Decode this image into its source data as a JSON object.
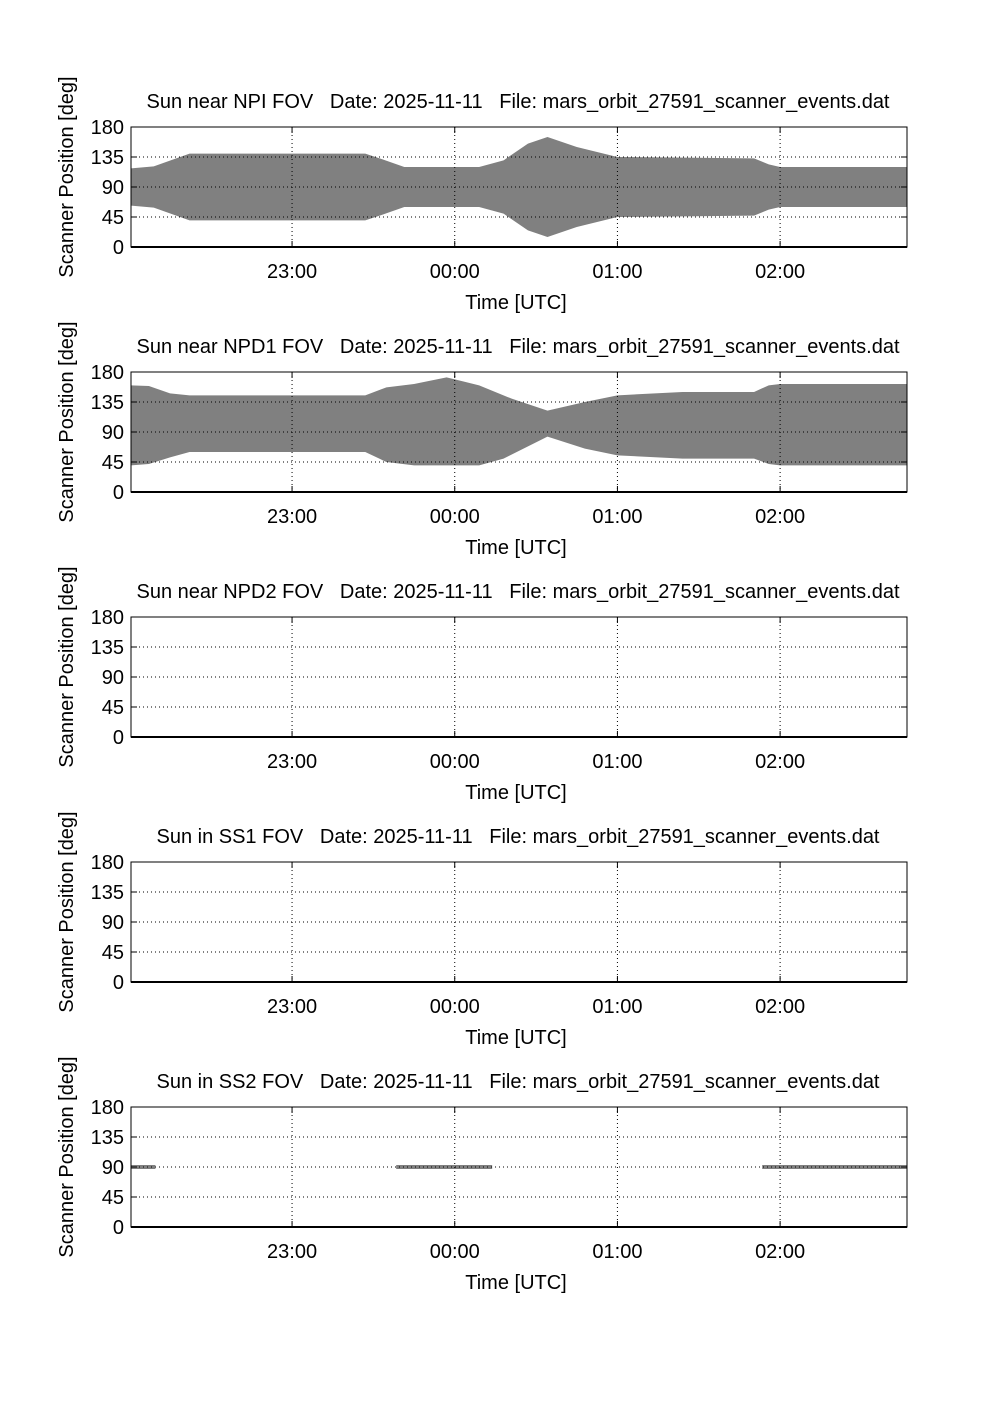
{
  "chart_data": [
    {
      "type": "area",
      "title": "Sun near NPI FOV   Date: 2025-11-11   File: mars_orbit_27591_scanner_events.dat",
      "xlabel": "Time [UTC]",
      "ylabel": "Scanner Position [deg]",
      "xlim_hours_from_midnight": [
        -1.99,
        2.78
      ],
      "ylim": [
        0,
        180
      ],
      "yticks": [
        "0",
        "45",
        "90",
        "135",
        "180"
      ],
      "xticks": [
        {
          "t": -1,
          "label": "23:00"
        },
        {
          "t": 0,
          "label": "00:00"
        },
        {
          "t": 1,
          "label": "01:00"
        },
        {
          "t": 2,
          "label": "02:00"
        }
      ],
      "grid": true,
      "color": "#808080",
      "upper": [
        [
          -1.99,
          118
        ],
        [
          -1.85,
          121
        ],
        [
          -1.63,
          140
        ],
        [
          -0.55,
          140
        ],
        [
          -0.45,
          132
        ],
        [
          -0.31,
          120
        ],
        [
          0.15,
          120
        ],
        [
          0.3,
          130
        ],
        [
          0.45,
          155
        ],
        [
          0.57,
          165
        ],
        [
          0.75,
          150
        ],
        [
          1.0,
          135
        ],
        [
          1.84,
          133
        ],
        [
          1.93,
          124
        ],
        [
          2.0,
          120
        ],
        [
          2.78,
          120
        ]
      ],
      "lower": [
        [
          -1.99,
          62
        ],
        [
          -1.85,
          59
        ],
        [
          -1.63,
          40
        ],
        [
          -0.55,
          40
        ],
        [
          -0.45,
          48
        ],
        [
          -0.31,
          60
        ],
        [
          0.15,
          60
        ],
        [
          0.3,
          50
        ],
        [
          0.45,
          25
        ],
        [
          0.57,
          15
        ],
        [
          0.75,
          30
        ],
        [
          1.0,
          45
        ],
        [
          1.84,
          47
        ],
        [
          1.93,
          56
        ],
        [
          2.0,
          60
        ],
        [
          2.78,
          60
        ]
      ],
      "segments": []
    },
    {
      "type": "area",
      "title": "Sun near NPD1 FOV   Date: 2025-11-11   File: mars_orbit_27591_scanner_events.dat",
      "xlabel": "Time [UTC]",
      "ylabel": "Scanner Position [deg]",
      "xlim_hours_from_midnight": [
        -1.99,
        2.78
      ],
      "ylim": [
        0,
        180
      ],
      "yticks": [
        "0",
        "45",
        "90",
        "135",
        "180"
      ],
      "xticks": [
        {
          "t": -1,
          "label": "23:00"
        },
        {
          "t": 0,
          "label": "00:00"
        },
        {
          "t": 1,
          "label": "01:00"
        },
        {
          "t": 2,
          "label": "02:00"
        }
      ],
      "grid": true,
      "color": "#808080",
      "upper": [
        [
          -1.99,
          160
        ],
        [
          -1.88,
          159
        ],
        [
          -1.75,
          148
        ],
        [
          -1.63,
          145
        ],
        [
          -0.55,
          145
        ],
        [
          -0.42,
          157
        ],
        [
          -0.25,
          162
        ],
        [
          -0.05,
          172
        ],
        [
          0.15,
          160
        ],
        [
          0.35,
          140
        ],
        [
          0.57,
          122
        ],
        [
          0.8,
          135
        ],
        [
          1.0,
          145
        ],
        [
          1.4,
          150
        ],
        [
          1.84,
          150
        ],
        [
          1.93,
          160
        ],
        [
          2.0,
          162
        ],
        [
          2.78,
          162
        ]
      ],
      "lower": [
        [
          -1.99,
          40
        ],
        [
          -1.88,
          42
        ],
        [
          -1.75,
          52
        ],
        [
          -1.63,
          60
        ],
        [
          -0.55,
          60
        ],
        [
          -0.42,
          45
        ],
        [
          -0.25,
          40
        ],
        [
          0.15,
          40
        ],
        [
          0.3,
          50
        ],
        [
          0.57,
          83
        ],
        [
          0.8,
          65
        ],
        [
          1.0,
          55
        ],
        [
          1.4,
          50
        ],
        [
          1.84,
          50
        ],
        [
          1.93,
          42
        ],
        [
          2.0,
          40
        ],
        [
          2.78,
          40
        ]
      ],
      "segments": []
    },
    {
      "type": "area",
      "title": "Sun near NPD2 FOV   Date: 2025-11-11   File: mars_orbit_27591_scanner_events.dat",
      "xlabel": "Time [UTC]",
      "ylabel": "Scanner Position [deg]",
      "xlim_hours_from_midnight": [
        -1.99,
        2.78
      ],
      "ylim": [
        0,
        180
      ],
      "yticks": [
        "0",
        "45",
        "90",
        "135",
        "180"
      ],
      "xticks": [
        {
          "t": -1,
          "label": "23:00"
        },
        {
          "t": 0,
          "label": "00:00"
        },
        {
          "t": 1,
          "label": "01:00"
        },
        {
          "t": 2,
          "label": "02:00"
        }
      ],
      "grid": true,
      "color": "#808080",
      "upper": [],
      "lower": [],
      "segments": []
    },
    {
      "type": "area",
      "title": "Sun in SS1 FOV   Date: 2025-11-11   File: mars_orbit_27591_scanner_events.dat",
      "xlabel": "Time [UTC]",
      "ylabel": "Scanner Position [deg]",
      "xlim_hours_from_midnight": [
        -1.99,
        2.78
      ],
      "ylim": [
        0,
        180
      ],
      "yticks": [
        "0",
        "45",
        "90",
        "135",
        "180"
      ],
      "xticks": [
        {
          "t": -1,
          "label": "23:00"
        },
        {
          "t": 0,
          "label": "00:00"
        },
        {
          "t": 1,
          "label": "01:00"
        },
        {
          "t": 2,
          "label": "02:00"
        }
      ],
      "grid": true,
      "color": "#808080",
      "upper": [],
      "lower": [],
      "segments": []
    },
    {
      "type": "line",
      "title": "Sun in SS2 FOV   Date: 2025-11-11   File: mars_orbit_27591_scanner_events.dat",
      "xlabel": "Time [UTC]",
      "ylabel": "Scanner Position [deg]",
      "xlim_hours_from_midnight": [
        -1.99,
        2.78
      ],
      "ylim": [
        0,
        180
      ],
      "yticks": [
        "0",
        "45",
        "90",
        "135",
        "180"
      ],
      "xticks": [
        {
          "t": -1,
          "label": "23:00"
        },
        {
          "t": 0,
          "label": "00:00"
        },
        {
          "t": 1,
          "label": "01:00"
        },
        {
          "t": 2,
          "label": "02:00"
        }
      ],
      "grid": true,
      "color": "#808080",
      "upper": [],
      "lower": [],
      "segments": [
        {
          "t0": -1.99,
          "t1": -1.84,
          "value": 90
        },
        {
          "t0": -0.36,
          "t1": 0.23,
          "value": 90
        },
        {
          "t0": 1.89,
          "t1": 2.78,
          "value": 90
        }
      ]
    }
  ]
}
